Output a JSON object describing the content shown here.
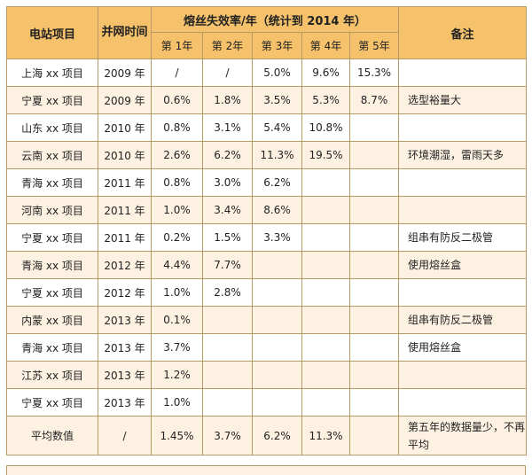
{
  "headers": {
    "project": "电站项目",
    "grid_time": "并网时间",
    "failure_rate": "熔丝失效率/年（统计到 2014 年）",
    "notes": "备注",
    "years": [
      "第 1年",
      "第 2年",
      "第 3年",
      "第 4年",
      "第 5年"
    ]
  },
  "rows": [
    {
      "project": "上海 xx 项目",
      "year": "2009 年",
      "r1": "/",
      "r2": "/",
      "r3": "5.0%",
      "r4": "9.6%",
      "r5": "15.3%",
      "note": ""
    },
    {
      "project": "宁夏 xx 项目",
      "year": "2009 年",
      "r1": "0.6%",
      "r2": "1.8%",
      "r3": "3.5%",
      "r4": "5.3%",
      "r5": "8.7%",
      "note": "选型裕量大"
    },
    {
      "project": "山东 xx 项目",
      "year": "2010 年",
      "r1": "0.8%",
      "r2": "3.1%",
      "r3": "5.4%",
      "r4": "10.8%",
      "r5": "",
      "note": ""
    },
    {
      "project": "云南 xx 项目",
      "year": "2010 年",
      "r1": "2.6%",
      "r2": "6.2%",
      "r3": "11.3%",
      "r4": "19.5%",
      "r5": "",
      "note": "环境潮湿，雷雨天多"
    },
    {
      "project": "青海 xx 项目",
      "year": "2011 年",
      "r1": "0.8%",
      "r2": "3.0%",
      "r3": "6.2%",
      "r4": "",
      "r5": "",
      "note": ""
    },
    {
      "project": "河南 xx 项目",
      "year": "2011 年",
      "r1": "1.0%",
      "r2": "3.4%",
      "r3": "8.6%",
      "r4": "",
      "r5": "",
      "note": ""
    },
    {
      "project": "宁夏 xx 项目",
      "year": "2011 年",
      "r1": "0.2%",
      "r2": "1.5%",
      "r3": "3.3%",
      "r4": "",
      "r5": "",
      "note": "组串有防反二极管"
    },
    {
      "project": "青海 xx 项目",
      "year": "2012 年",
      "r1": "4.4%",
      "r2": "7.7%",
      "r3": "",
      "r4": "",
      "r5": "",
      "note": "使用熔丝盒"
    },
    {
      "project": "宁夏 xx 项目",
      "year": "2012 年",
      "r1": "1.0%",
      "r2": "2.8%",
      "r3": "",
      "r4": "",
      "r5": "",
      "note": ""
    },
    {
      "project": "内蒙 xx 项目",
      "year": "2013 年",
      "r1": "0.1%",
      "r2": "",
      "r3": "",
      "r4": "",
      "r5": "",
      "note": "组串有防反二极管"
    },
    {
      "project": "青海 xx 项目",
      "year": "2013 年",
      "r1": "3.7%",
      "r2": "",
      "r3": "",
      "r4": "",
      "r5": "",
      "note": "使用熔丝盒"
    },
    {
      "project": "江苏 xx 项目",
      "year": "2013 年",
      "r1": "1.2%",
      "r2": "",
      "r3": "",
      "r4": "",
      "r5": "",
      "note": ""
    },
    {
      "project": "宁夏 xx 项目",
      "year": "2013 年",
      "r1": "1.0%",
      "r2": "",
      "r3": "",
      "r4": "",
      "r5": "",
      "note": ""
    }
  ],
  "average": {
    "project": "平均数值",
    "year": "/",
    "r1": "1.45%",
    "r2": "3.7%",
    "r3": "6.2%",
    "r4": "11.3%",
    "r5": "",
    "note": "第五年的数据量少，不再平均"
  },
  "colors": {
    "header": "#f5c26b",
    "row_alt": "#fdf2e2",
    "border": "#b59a66"
  }
}
